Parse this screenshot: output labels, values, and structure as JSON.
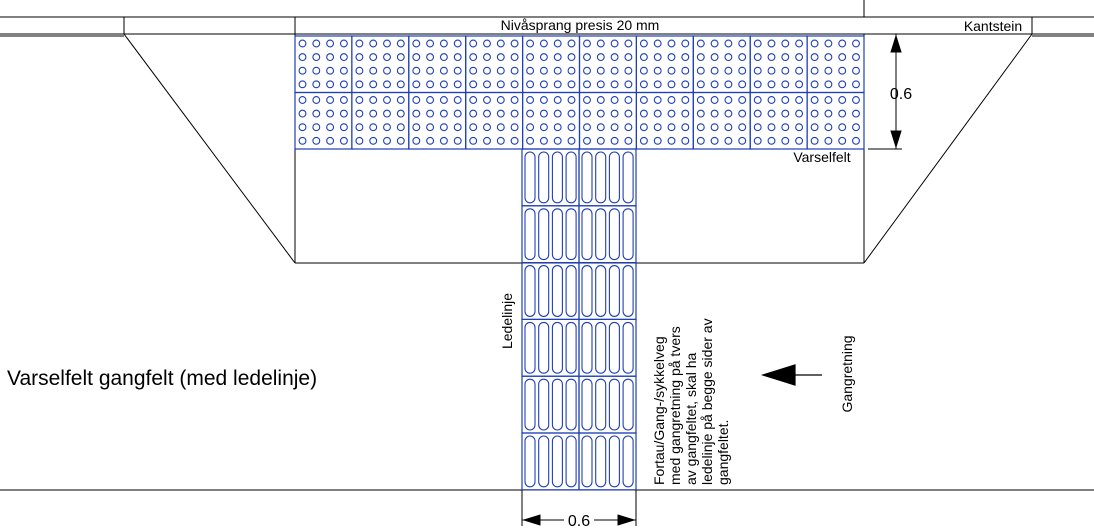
{
  "diagram": {
    "top_label": "Nivåsprang presis 20 mm",
    "curb_label": "Kantstein",
    "warning_field_label": "Varselfelt",
    "depth_dimension": "0.6",
    "guide_line_label": "Ledelinje",
    "guide_width_dimension": "0.6",
    "side_note_lines": [
      "Fortau/Gang-/sykkelveg",
      "med gangretning på tvers",
      "av gangfeltet, skal ha",
      "ledelinje på begge sider av",
      "gangfeltet."
    ],
    "walking_direction_label": "Gangretning",
    "main_title": "Varselfelt gangfelt (med ledelinje)",
    "tile_color": "#1f3fb8",
    "line_color": "#000000"
  }
}
